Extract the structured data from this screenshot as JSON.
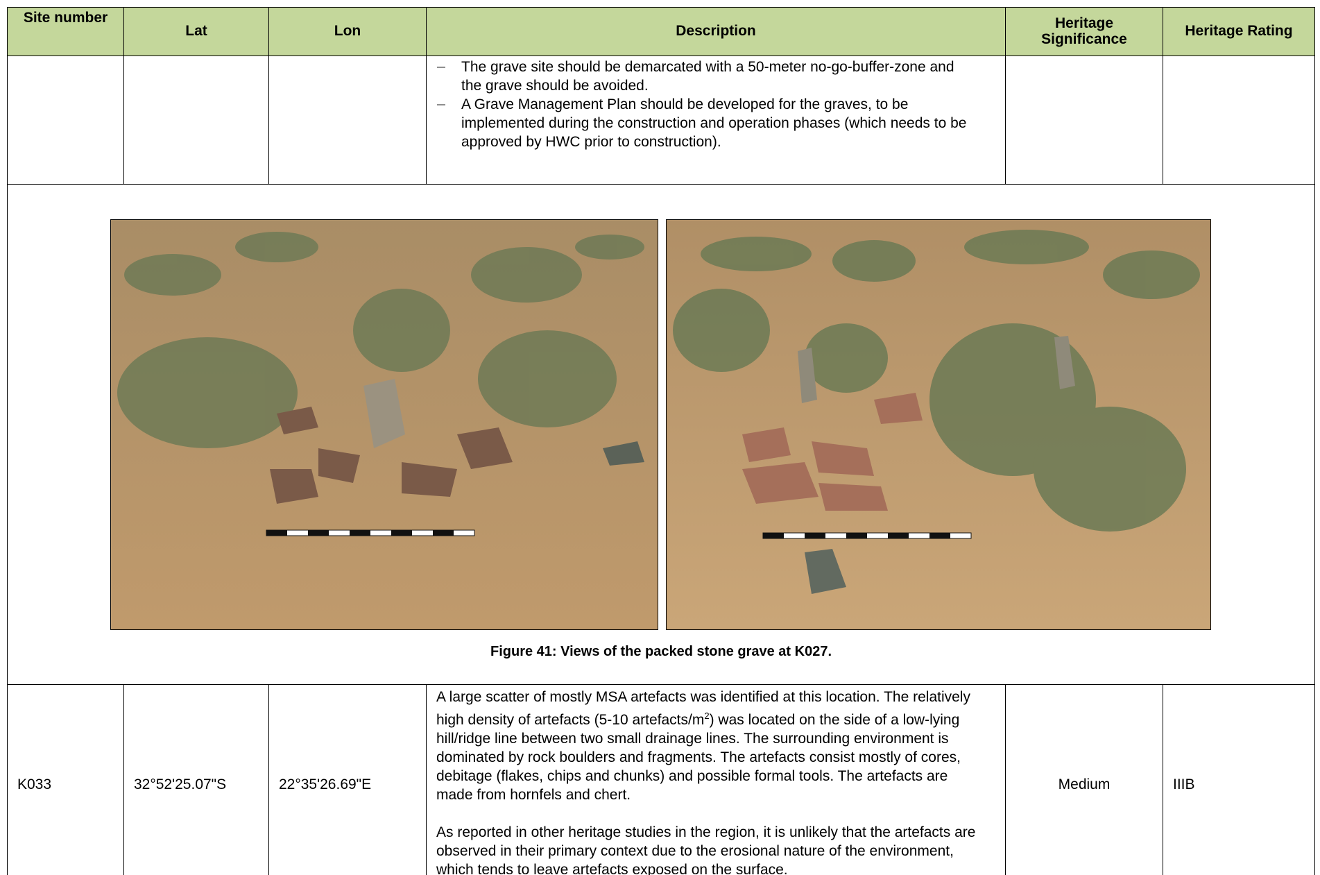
{
  "header": {
    "columns": [
      "Site number",
      "Lat",
      "Lon",
      "Description",
      "Heritage Significance",
      "Heritage Rating"
    ]
  },
  "continued_row": {
    "bullets": [
      "The grave site should be demarcated with a 50-meter no-go-buffer-zone and the grave should be avoided.",
      "A Grave Management Plan should be developed for the graves, to be implemented during the construction and operation phases (which needs to be approved by HWC prior to construction)."
    ]
  },
  "figure": {
    "caption": "Figure 41: Views of the packed stone grave at K027."
  },
  "site_row": {
    "site": "K033",
    "lat": "32°52'25.07\"S",
    "lon": "22°35'26.69\"E",
    "paragraphs": [
      {
        "before": "A large scatter of mostly MSA artefacts was identified at this location. The relatively high density of artefacts (5-10 artefacts/m",
        "sup": "2",
        "after": ") was located on the side of a low-lying hill/ridge line between two small drainage lines. The surrounding environment is dominated by rock boulders and fragments. The artefacts consist mostly of cores, debitage (flakes, chips and chunks) and possible formal tools. The artefacts are made from hornfels and chert."
      },
      {
        "before": "As reported in other heritage studies in the region, it is unlikely that the artefacts are observed in their primary context due to the erosional nature of the environment, which tends to leave artefacts exposed on the surface."
      }
    ],
    "significance": "Medium",
    "rating": "IIIB"
  }
}
